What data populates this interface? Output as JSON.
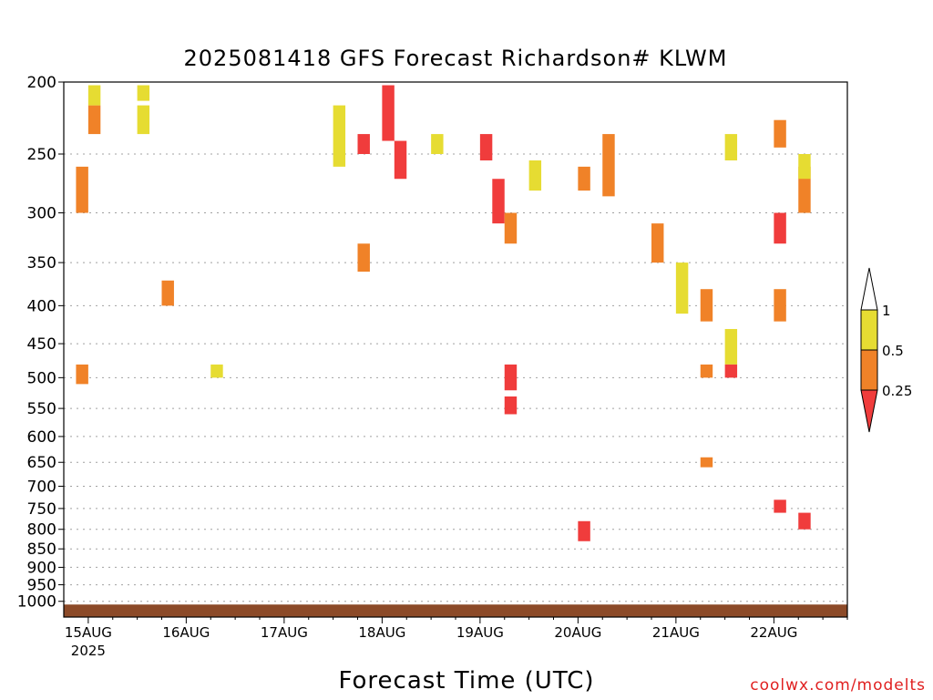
{
  "chart_data": {
    "type": "heatmap",
    "title": "2025081418 GFS Forecast Richardson# KLWM",
    "xlabel": "Forecast Time (UTC)",
    "ylabel": "",
    "y_scale": "log-pressure",
    "y_reversed": true,
    "y_range_mb": [
      200,
      1050
    ],
    "y_ticks": [
      "200",
      "250",
      "300",
      "350",
      "400",
      "450",
      "500",
      "550",
      "600",
      "650",
      "700",
      "750",
      "800",
      "850",
      "900",
      "950",
      "1000"
    ],
    "x_ticks": [
      "15AUG",
      "16AUG",
      "17AUG",
      "18AUG",
      "19AUG",
      "20AUG",
      "21AUG",
      "22AUG"
    ],
    "x_sublabel": "2025",
    "x_range": [
      "2025-08-14 18Z",
      "2025-08-22 18Z"
    ],
    "grid": "dotted horizontal at pressure ticks",
    "legend": {
      "placement": "right",
      "levels": [
        "1",
        "0.5",
        "0.25"
      ],
      "colors": [
        "#e6dc32",
        "#f08228",
        "#f03c3c"
      ],
      "bins": [
        "0.5-1",
        "0.25-0.5",
        "<0.25"
      ]
    },
    "ground_color": "#8c4a28",
    "cells": [
      [
        "2025-08-15 00Z",
        215,
        235,
        "#f08228"
      ],
      [
        "2025-08-15 00Z",
        202,
        215,
        "#e6dc32"
      ],
      [
        "2025-08-15 12Z",
        215,
        235,
        "#e6dc32"
      ],
      [
        "2025-08-15 12Z",
        202,
        212,
        "#e6dc32"
      ],
      [
        "2025-08-17 12Z",
        215,
        260,
        "#e6dc32"
      ],
      [
        "2025-08-17 18Z",
        235,
        250,
        "#f03c3c"
      ],
      [
        "2025-08-18 00Z",
        202,
        240,
        "#f03c3c"
      ],
      [
        "2025-08-18 03Z",
        240,
        270,
        "#f03c3c"
      ],
      [
        "2025-08-18 12Z",
        235,
        250,
        "#e6dc32"
      ],
      [
        "2025-08-19 00Z",
        235,
        255,
        "#f03c3c"
      ],
      [
        "2025-08-19 03Z",
        270,
        310,
        "#f03c3c"
      ],
      [
        "2025-08-19 06Z",
        300,
        330,
        "#f08228"
      ],
      [
        "2025-08-19 12Z",
        255,
        280,
        "#e6dc32"
      ],
      [
        "2025-08-20 00Z",
        260,
        280,
        "#f08228"
      ],
      [
        "2025-08-20 06Z",
        235,
        285,
        "#f08228"
      ],
      [
        "2025-08-21 12Z",
        235,
        255,
        "#e6dc32"
      ],
      [
        "2025-08-22 00Z",
        225,
        245,
        "#f08228"
      ],
      [
        "2025-08-22 00Z",
        300,
        330,
        "#f03c3c"
      ],
      [
        "2025-08-22 06Z",
        260,
        300,
        "#f08228"
      ],
      [
        "2025-08-22 06Z",
        250,
        270,
        "#e6dc32"
      ],
      [
        "2025-08-20 18Z",
        310,
        350,
        "#f08228"
      ],
      [
        "2025-08-21 00Z",
        350,
        410,
        "#e6dc32"
      ],
      [
        "2025-08-21 06Z",
        380,
        420,
        "#f08228"
      ],
      [
        "2025-08-21 12Z",
        430,
        480,
        "#e6dc32"
      ],
      [
        "2025-08-21 06Z",
        480,
        500,
        "#f08228"
      ],
      [
        "2025-08-21 12Z",
        480,
        500,
        "#f03c3c"
      ],
      [
        "2025-08-22 00Z",
        380,
        420,
        "#f08228"
      ],
      [
        "2025-08-19 06Z",
        480,
        520,
        "#f03c3c"
      ],
      [
        "2025-08-19 06Z",
        530,
        560,
        "#f03c3c"
      ],
      [
        "2025-08-17 18Z",
        330,
        360,
        "#f08228"
      ],
      [
        "2025-08-15 18Z",
        370,
        400,
        "#f08228"
      ],
      [
        "2025-08-16 06Z",
        480,
        500,
        "#e6dc32"
      ],
      [
        "2025-08-14 21Z",
        260,
        300,
        "#f08228"
      ],
      [
        "2025-08-14 21Z",
        480,
        510,
        "#f08228"
      ],
      [
        "2025-08-21 06Z",
        640,
        660,
        "#f08228"
      ],
      [
        "2025-08-22 00Z",
        730,
        760,
        "#f03c3c"
      ],
      [
        "2025-08-22 06Z",
        760,
        800,
        "#f03c3c"
      ],
      [
        "2025-08-20 00Z",
        780,
        830,
        "#f03c3c"
      ]
    ]
  }
}
